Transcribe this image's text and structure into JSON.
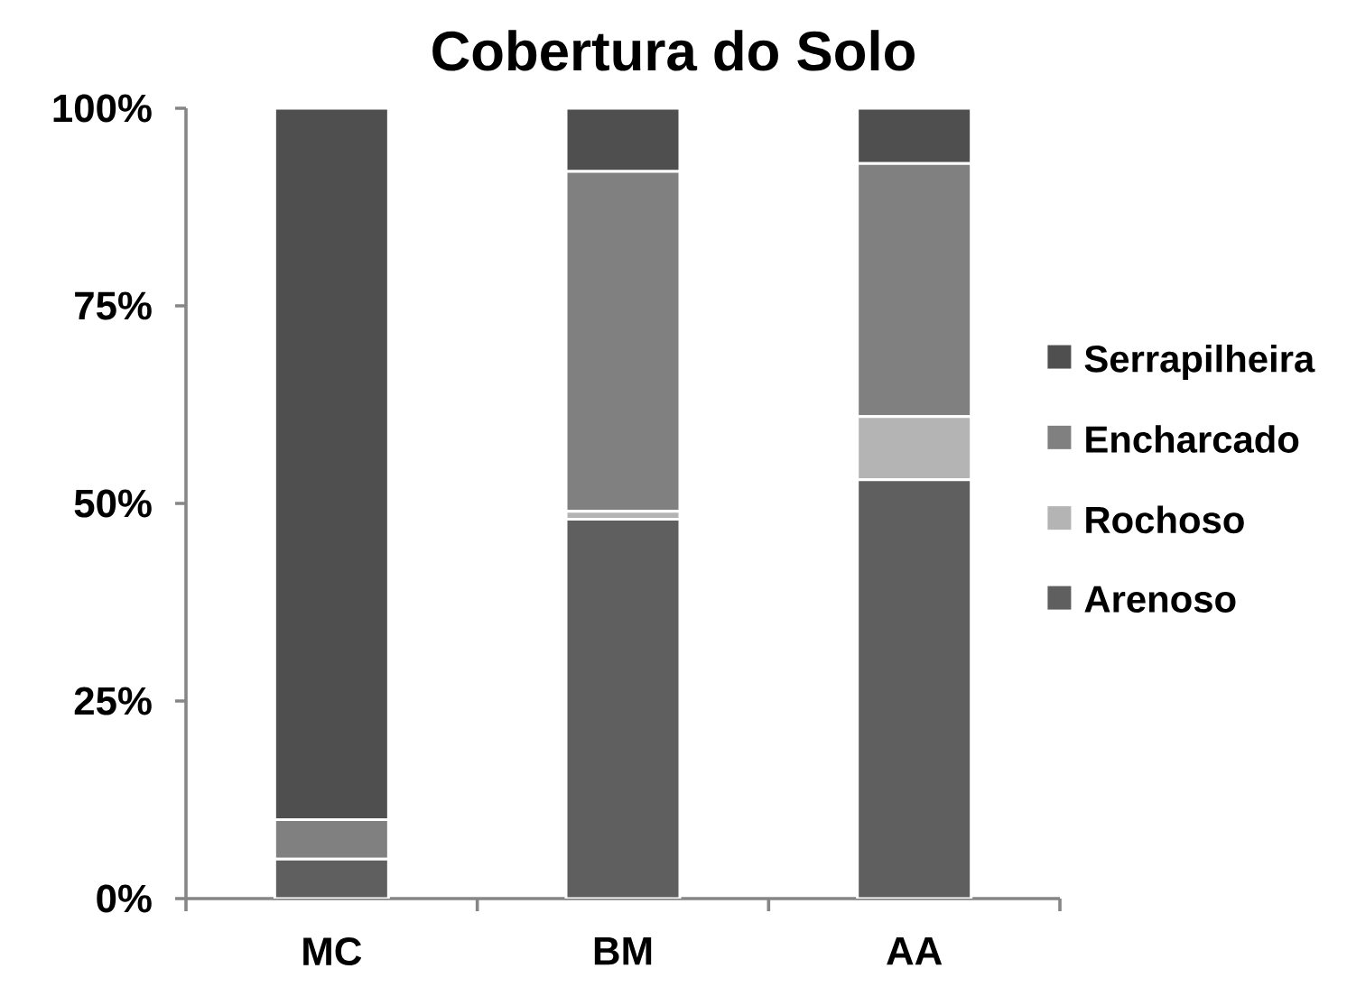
{
  "chart_data": {
    "type": "bar",
    "title": "Cobertura do Solo",
    "categories": [
      "MC",
      "BM",
      "AA"
    ],
    "stacked": true,
    "series": [
      {
        "name": "Arenoso",
        "color": "#5f5f5f",
        "values": [
          5,
          48,
          53
        ]
      },
      {
        "name": "Rochoso",
        "color": "#b4b4b4",
        "values": [
          0,
          1,
          8
        ]
      },
      {
        "name": "Encharcado",
        "color": "#808080",
        "values": [
          5,
          43,
          32
        ]
      },
      {
        "name": "Serrapilheira",
        "color": "#4f4f4f",
        "values": [
          90,
          8,
          7
        ]
      }
    ],
    "ylim": [
      0,
      100
    ],
    "yticks": [
      {
        "value": 0,
        "label": "0%"
      },
      {
        "value": 25,
        "label": "25%"
      },
      {
        "value": 50,
        "label": "50%"
      },
      {
        "value": 75,
        "label": "75%"
      },
      {
        "value": 100,
        "label": "100%"
      }
    ],
    "legend": "right"
  }
}
